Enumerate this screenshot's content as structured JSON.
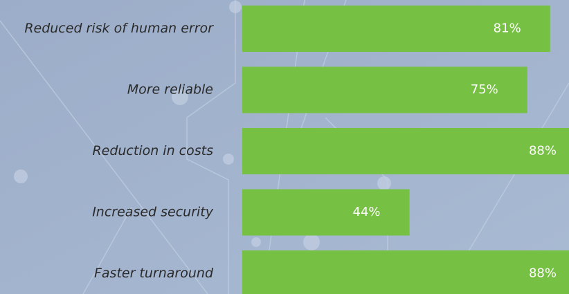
{
  "chart_data": {
    "type": "bar",
    "orientation": "horizontal",
    "categories": [
      "Reduced risk of human error",
      "More reliable",
      "Reduction in costs",
      "Increased security",
      "Faster turnaround"
    ],
    "values": [
      81,
      75,
      88,
      44,
      88
    ],
    "value_labels": [
      "81%",
      "75%",
      "88%",
      "44%",
      "88%"
    ],
    "color": "#76c043"
  }
}
